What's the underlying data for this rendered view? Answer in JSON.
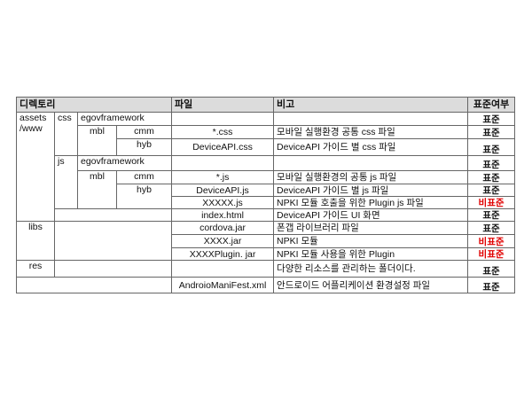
{
  "headers": {
    "directory": "디렉토리",
    "file": "파일",
    "note": "비고",
    "standard": "표준여부"
  },
  "colors": {
    "header_bg": "#dcdcdc",
    "nonstandard": "#e00000"
  },
  "dirs": {
    "assets": "assets /www",
    "css": "css",
    "js": "js",
    "egov": "egovframework",
    "mbl": "mbl",
    "cmm": "cmm",
    "hyb": "hyb",
    "libs": "libs",
    "res": "res"
  },
  "rows": [
    {
      "file": "",
      "note": "",
      "std": "표준"
    },
    {
      "file": "*.css",
      "note": "모바일 실행환경 공통 css 파일",
      "std": "표준"
    },
    {
      "file": "DeviceAPI.css",
      "note": "DeviceAPI 가이드 별 css 파일",
      "std": "표준"
    },
    {
      "file": "",
      "note": "",
      "std": "표준"
    },
    {
      "file": "*.js",
      "note": "모바일 실행환경의 공통 js 파일",
      "std": "표준"
    },
    {
      "file": "DeviceAPI.js",
      "note": "DeviceAPI 가이드 별 js 파일",
      "std": "표준"
    },
    {
      "file": "XXXXX.js",
      "note": "NPKI 모듈 호출을 위한 Plugin js 파일",
      "std": "비표준"
    },
    {
      "file": "index.html",
      "note": "DeviceAPI 가이드 UI 화면",
      "std": "표준"
    },
    {
      "file": "cordova.jar",
      "note": "폰갭 라이브러리 파일",
      "std": "표준"
    },
    {
      "file": "XXXX.jar",
      "note": "NPKI 모듈",
      "std": "비표준"
    },
    {
      "file": "XXXXPlugin. jar",
      "note": "NPKI 모듈 사용을 위한 Plugin",
      "std": "비표준"
    },
    {
      "file": "",
      "note": "다양한 리소스를 관리하는 폴더이다.",
      "std": "표준"
    },
    {
      "file": "AndroioManiFest.xml",
      "note": "안드로이드 어플리케이션 환경설정 파일",
      "std": "표준"
    }
  ]
}
